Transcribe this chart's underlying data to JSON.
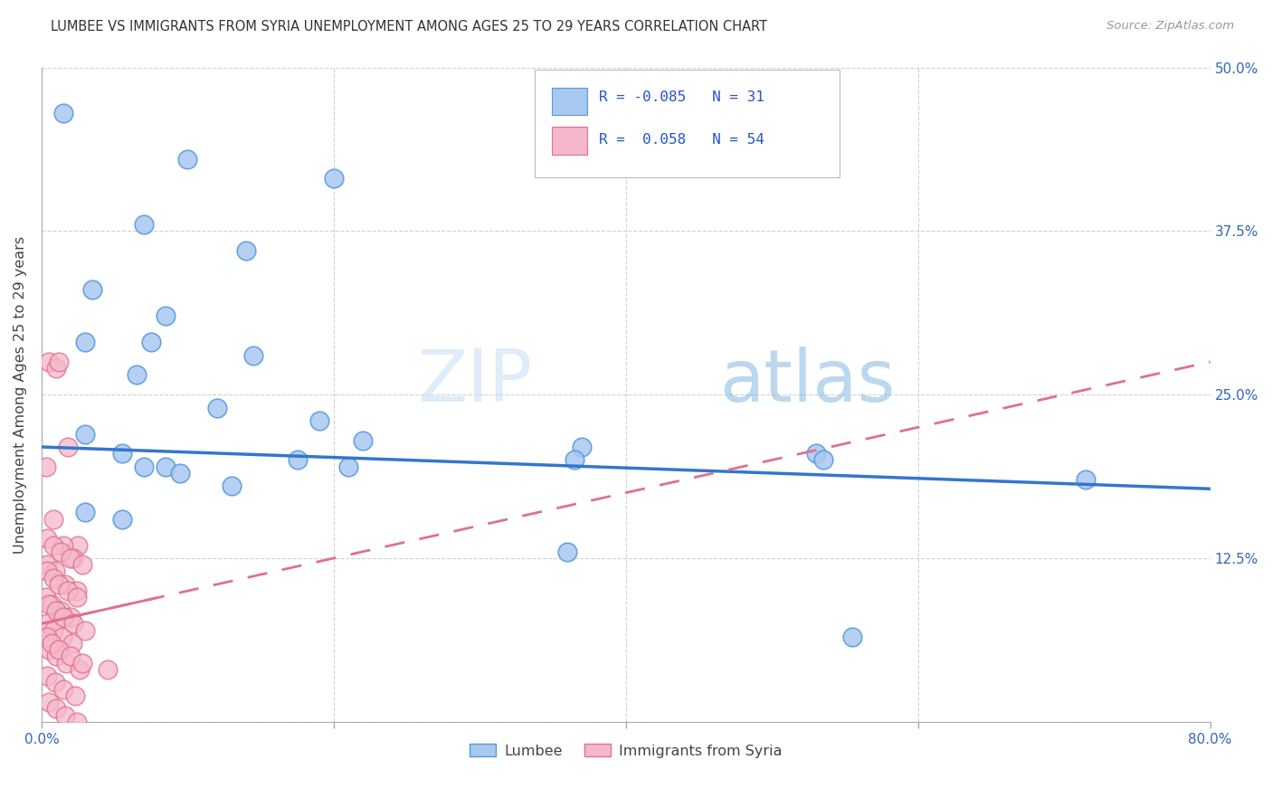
{
  "title": "LUMBEE VS IMMIGRANTS FROM SYRIA UNEMPLOYMENT AMONG AGES 25 TO 29 YEARS CORRELATION CHART",
  "source": "Source: ZipAtlas.com",
  "ylabel": "Unemployment Among Ages 25 to 29 years",
  "xlim": [
    0.0,
    80.0
  ],
  "ylim": [
    0.0,
    50.0
  ],
  "xticks": [
    0,
    20,
    40,
    60,
    80
  ],
  "yticks": [
    0,
    12.5,
    25.0,
    37.5,
    50.0
  ],
  "xtick_labels": [
    "0.0%",
    "",
    "",
    "",
    "80.0%"
  ],
  "ytick_labels_right": [
    "",
    "12.5%",
    "25.0%",
    "37.5%",
    "50.0%"
  ],
  "legend_r_lumbee": "-0.085",
  "legend_n_lumbee": "31",
  "legend_r_syria": "0.058",
  "legend_n_syria": "54",
  "lumbee_color": "#a8c8f0",
  "lumbee_edge": "#5599dd",
  "syria_color": "#f5b8ca",
  "syria_edge": "#e07090",
  "lumbee_line_color": "#3377cc",
  "syria_line_color": "#e07090",
  "watermark_zip": "ZIP",
  "watermark_atlas": "atlas",
  "lumbee_x": [
    1.5,
    10.0,
    20.0,
    7.0,
    14.0,
    3.5,
    8.5,
    3.0,
    7.5,
    14.5,
    19.0,
    6.5,
    12.0,
    22.0,
    37.0,
    3.0,
    5.5,
    36.5,
    53.0,
    8.5,
    17.5,
    3.0,
    5.5,
    7.0,
    9.5,
    13.0,
    21.0,
    53.5,
    71.5,
    36.0,
    55.5
  ],
  "lumbee_y": [
    46.5,
    43.0,
    41.5,
    38.0,
    36.0,
    33.0,
    31.0,
    29.0,
    29.0,
    28.0,
    23.0,
    26.5,
    24.0,
    21.5,
    21.0,
    22.0,
    20.5,
    20.0,
    20.5,
    19.5,
    20.0,
    16.0,
    15.5,
    19.5,
    19.0,
    18.0,
    19.5,
    20.0,
    18.5,
    13.0,
    6.5
  ],
  "syria_x": [
    0.5,
    1.0,
    1.2,
    1.8,
    2.5,
    0.3,
    0.8,
    1.5,
    2.2,
    0.4,
    0.9,
    1.6,
    2.4,
    0.3,
    0.7,
    1.3,
    2.0,
    0.4,
    0.8,
    1.4,
    2.1,
    0.5,
    1.0,
    1.7,
    2.6,
    0.4,
    0.9,
    1.5,
    2.3,
    0.5,
    1.0,
    1.6,
    2.4,
    0.4,
    0.8,
    1.3,
    2.0,
    2.8,
    0.4,
    0.8,
    1.2,
    1.8,
    2.4,
    0.5,
    1.0,
    1.5,
    2.2,
    3.0,
    0.4,
    0.7,
    1.2,
    2.0,
    2.8,
    4.5
  ],
  "syria_y": [
    27.5,
    27.0,
    27.5,
    21.0,
    13.5,
    19.5,
    15.5,
    13.5,
    12.5,
    12.0,
    11.5,
    10.5,
    10.0,
    9.5,
    9.0,
    8.5,
    8.0,
    7.5,
    7.0,
    6.5,
    6.0,
    5.5,
    5.0,
    4.5,
    4.0,
    3.5,
    3.0,
    2.5,
    2.0,
    1.5,
    1.0,
    0.5,
    0.0,
    14.0,
    13.5,
    13.0,
    12.5,
    12.0,
    11.5,
    11.0,
    10.5,
    10.0,
    9.5,
    9.0,
    8.5,
    8.0,
    7.5,
    7.0,
    6.5,
    6.0,
    5.5,
    5.0,
    4.5,
    4.0
  ]
}
